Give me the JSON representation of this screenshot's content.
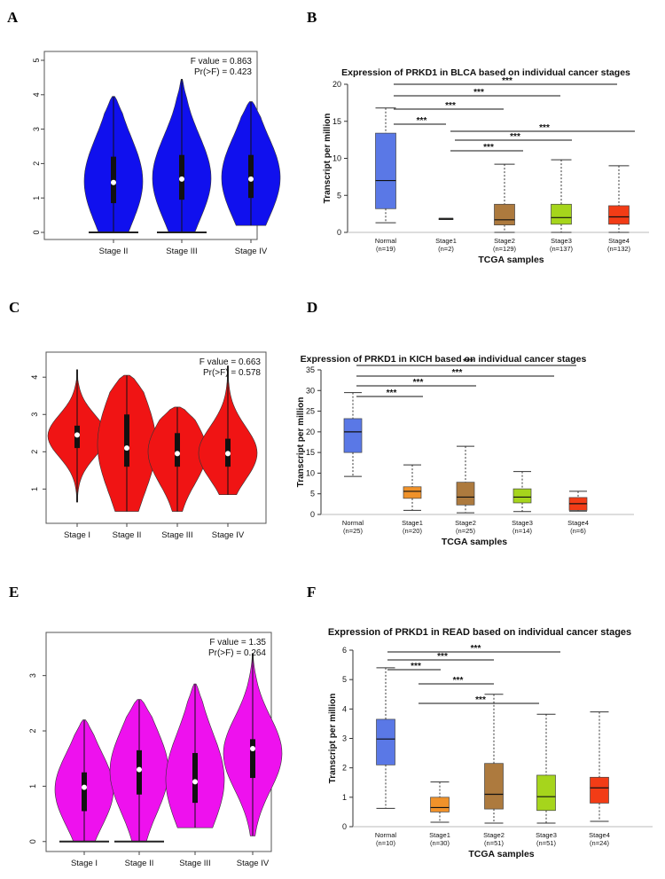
{
  "panel_letters": [
    "A",
    "B",
    "C",
    "D",
    "E",
    "F"
  ],
  "colors": {
    "violin_A": "#1010ee",
    "violin_C": "#f01414",
    "violin_E": "#ee11ee",
    "normal": "#5a78e6",
    "stage1": "#f0922a",
    "stage2": "#ad7a3e",
    "stage3": "#a6d51c",
    "stage4": "#f23c16"
  },
  "chart_data": [
    {
      "panel": "A",
      "type": "violin",
      "stat_f": "F value = 0.863",
      "stat_p": "Pr(>F) = 0.423",
      "categories": [
        "Stage II",
        "Stage III",
        "Stage IV"
      ],
      "yticks": [
        "0",
        "1",
        "2",
        "3",
        "4",
        "5"
      ],
      "ylim": [
        0,
        5
      ],
      "violins": [
        {
          "min": 0.0,
          "q1": 0.85,
          "median": 1.45,
          "q3": 2.2,
          "max": 3.95,
          "lo": 0.0
        },
        {
          "min": 0.0,
          "q1": 0.95,
          "median": 1.55,
          "q3": 2.25,
          "max": 4.45,
          "lo": 0.0
        },
        {
          "min": 0.2,
          "q1": 1.0,
          "median": 1.55,
          "q3": 2.25,
          "max": 3.8,
          "lo": 0.2
        }
      ]
    },
    {
      "panel": "B",
      "type": "box",
      "title": "Expression of PRKD1 in BLCA based on individual cancer stages",
      "ylabel": "Transcript per million",
      "xlabel": "TCGA samples",
      "yticks": [
        "0",
        "5",
        "10",
        "15",
        "20"
      ],
      "ylim": [
        0,
        20
      ],
      "categories": [
        "Normal",
        "Stage1",
        "Stage2",
        "Stage3",
        "Stage4"
      ],
      "n_labels": [
        "(n=19)",
        "(n=2)",
        "(n=129)",
        "(n=137)",
        "(n=132)"
      ],
      "boxes": [
        {
          "min": 1.3,
          "q1": 3.2,
          "median": 7.0,
          "q3": 13.4,
          "max": 16.8
        },
        {
          "min": 1.8,
          "q1": 1.8,
          "median": 1.8,
          "q3": 1.9,
          "max": 1.9
        },
        {
          "min": 0.0,
          "q1": 1.0,
          "median": 1.7,
          "q3": 3.8,
          "max": 9.2
        },
        {
          "min": 0.0,
          "q1": 1.1,
          "median": 2.0,
          "q3": 3.8,
          "max": 9.8
        },
        {
          "min": 0.0,
          "q1": 1.1,
          "median": 2.1,
          "q3": 3.6,
          "max": 9.0
        }
      ],
      "significance": [
        "***",
        "***",
        "***",
        "***",
        "***",
        "***",
        "***"
      ]
    },
    {
      "panel": "C",
      "type": "violin",
      "stat_f": "F value = 0.663",
      "stat_p": "Pr(>F) = 0.578",
      "categories": [
        "Stage I",
        "Stage II",
        "Stage III",
        "Stage IV"
      ],
      "yticks": [
        "1",
        "2",
        "3",
        "4"
      ],
      "ylim": [
        0.2,
        4.6
      ],
      "violins": [
        {
          "min": 0.65,
          "q1": 2.1,
          "median": 2.45,
          "q3": 2.7,
          "max": 4.2,
          "lo": 0.65
        },
        {
          "min": 0.4,
          "q1": 1.6,
          "median": 2.1,
          "q3": 3.0,
          "max": 4.05,
          "lo": 0.4
        },
        {
          "min": 0.4,
          "q1": 1.6,
          "median": 1.95,
          "q3": 2.5,
          "max": 3.2,
          "lo": 0.4
        },
        {
          "min": 0.85,
          "q1": 1.6,
          "median": 1.95,
          "q3": 2.35,
          "max": 4.3,
          "lo": 0.85
        }
      ]
    },
    {
      "panel": "D",
      "type": "box",
      "title": "Expression of PRKD1 in KICH based on individual cancer stages",
      "ylabel": "Transcript per million",
      "xlabel": "TCGA samples",
      "yticks": [
        "0",
        "5",
        "10",
        "15",
        "20",
        "25",
        "30",
        "35"
      ],
      "ylim": [
        0,
        35
      ],
      "categories": [
        "Normal",
        "Stage1",
        "Stage2",
        "Stage3",
        "Stage4"
      ],
      "n_labels": [
        "(n=25)",
        "(n=20)",
        "(n=25)",
        "(n=14)",
        "(n=6)"
      ],
      "boxes": [
        {
          "min": 9.2,
          "q1": 15.0,
          "median": 20.0,
          "q3": 23.2,
          "max": 29.5
        },
        {
          "min": 1.0,
          "q1": 3.9,
          "median": 5.6,
          "q3": 6.7,
          "max": 12.0
        },
        {
          "min": 0.4,
          "q1": 2.3,
          "median": 4.2,
          "q3": 7.8,
          "max": 16.5
        },
        {
          "min": 0.7,
          "q1": 2.8,
          "median": 4.2,
          "q3": 6.2,
          "max": 10.4
        },
        {
          "min": 0.8,
          "q1": 1.0,
          "median": 2.6,
          "q3": 4.1,
          "max": 5.6
        }
      ],
      "significance": [
        "***",
        "***",
        "***",
        "***"
      ]
    },
    {
      "panel": "E",
      "type": "violin",
      "stat_f": "F value = 1.35",
      "stat_p": "Pr(>F) = 0.264",
      "categories": [
        "Stage I",
        "Stage II",
        "Stage III",
        "Stage IV"
      ],
      "yticks": [
        "0",
        "1",
        "2",
        "3"
      ],
      "ylim": [
        -0.1,
        3.7
      ],
      "violins": [
        {
          "min": 0.0,
          "q1": 0.55,
          "median": 0.98,
          "q3": 1.25,
          "max": 2.2,
          "lo": 0.0
        },
        {
          "min": 0.0,
          "q1": 0.85,
          "median": 1.3,
          "q3": 1.65,
          "max": 2.57,
          "lo": 0.0
        },
        {
          "min": 0.25,
          "q1": 0.7,
          "median": 1.08,
          "q3": 1.6,
          "max": 2.85,
          "lo": 0.25
        },
        {
          "min": 0.1,
          "q1": 1.15,
          "median": 1.68,
          "q3": 1.85,
          "max": 3.4,
          "lo": 0.1
        }
      ]
    },
    {
      "panel": "F",
      "type": "box",
      "title": "Expression of PRKD1 in READ based on individual cancer stages",
      "ylabel": "Transcript per million",
      "xlabel": "TCGA samples",
      "yticks": [
        "0",
        "1",
        "2",
        "3",
        "4",
        "5",
        "6"
      ],
      "ylim": [
        0,
        6
      ],
      "categories": [
        "Normal",
        "Stage1",
        "Stage2",
        "Stage3",
        "Stage4"
      ],
      "n_labels": [
        "(n=10)",
        "(n=30)",
        "(n=51)",
        "(n=51)",
        "(n=24)"
      ],
      "boxes": [
        {
          "min": 0.62,
          "q1": 2.1,
          "median": 2.98,
          "q3": 3.65,
          "max": 5.4
        },
        {
          "min": 0.15,
          "q1": 0.5,
          "median": 0.65,
          "q3": 1.0,
          "max": 1.52
        },
        {
          "min": 0.12,
          "q1": 0.6,
          "median": 1.1,
          "q3": 2.15,
          "max": 4.5
        },
        {
          "min": 0.12,
          "q1": 0.55,
          "median": 1.02,
          "q3": 1.75,
          "max": 3.82
        },
        {
          "min": 0.18,
          "q1": 0.8,
          "median": 1.32,
          "q3": 1.68,
          "max": 3.9
        }
      ],
      "significance": [
        "***",
        "***",
        "***",
        "***",
        "***"
      ]
    }
  ]
}
